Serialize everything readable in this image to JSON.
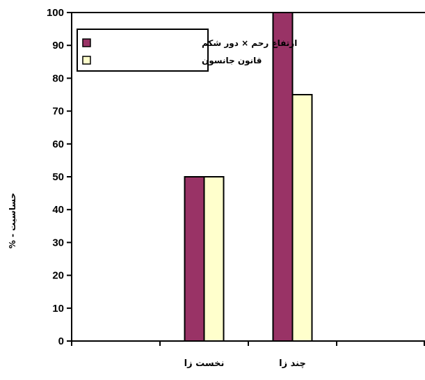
{
  "chart_data": {
    "type": "bar",
    "categories": [
      "نخست زا",
      "چند زا"
    ],
    "series": [
      {
        "name": "ارتفاع رحم × دور شکم",
        "values": [
          50,
          100
        ],
        "color": "#993366"
      },
      {
        "name": "قانون جانسون",
        "values": [
          50,
          75
        ],
        "color": "#ffffcc"
      }
    ],
    "ylabel": "حساسیت - %",
    "ylim": [
      0,
      100
    ],
    "yticks": [
      0,
      10,
      20,
      30,
      40,
      50,
      60,
      70,
      80,
      90,
      100
    ],
    "grid": false,
    "legend": "top-left"
  }
}
